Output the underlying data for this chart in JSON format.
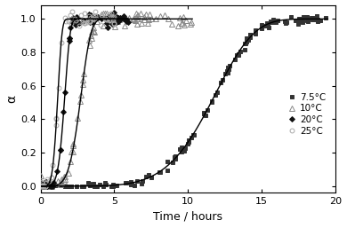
{
  "title": "",
  "xlabel": "Time / hours",
  "ylabel": "α",
  "xlim": [
    0,
    20
  ],
  "ylim": [
    -0.04,
    1.08
  ],
  "xticks": [
    0,
    5,
    10,
    15,
    20
  ],
  "yticks": [
    0.0,
    0.2,
    0.4,
    0.6,
    0.8,
    1.0
  ],
  "background_color": "#ffffff",
  "line_color": "#000000",
  "line_width": 1.0,
  "figsize": [
    3.9,
    2.57
  ],
  "dpi": 100,
  "series": [
    {
      "label": "7.5°C",
      "marker": "s",
      "markersize": 2.5,
      "color": "#333333",
      "mfc": "#333333",
      "k": 0.083,
      "n": 5.5,
      "t_max": 19.5,
      "n_pts": 140,
      "noise": 0.012,
      "induction": 0.3
    },
    {
      "label": "10°C",
      "marker": "^",
      "markersize": 4.0,
      "color": "#888888",
      "mfc": "none",
      "k": 0.36,
      "n": 5.0,
      "t_max": 10.3,
      "n_pts": 85,
      "noise": 0.022,
      "induction": 0.1
    },
    {
      "label": "20°C",
      "marker": "D",
      "markersize": 3.0,
      "color": "#111111",
      "mfc": "#111111",
      "k": 0.6,
      "n": 5.5,
      "t_max": 6.0,
      "n_pts": 65,
      "noise": 0.018,
      "induction": 0.05
    },
    {
      "label": "25°C",
      "marker": "o",
      "markersize": 3.5,
      "color": "#aaaaaa",
      "mfc": "none",
      "k": 0.85,
      "n": 5.0,
      "t_max": 5.0,
      "n_pts": 60,
      "noise": 0.024,
      "induction": 0.05
    }
  ]
}
